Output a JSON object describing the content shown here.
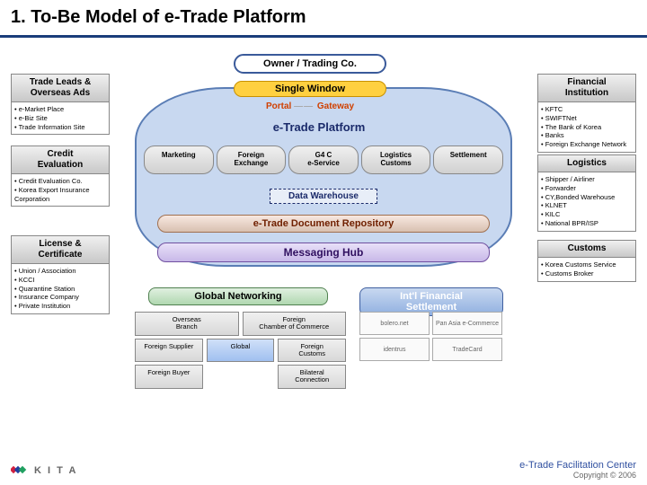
{
  "title": "1. To-Be Model of e-Trade Platform",
  "center": {
    "owner": "Owner / Trading Co.",
    "single_window": "Single Window",
    "portal": "Portal",
    "gateway": "Gateway",
    "platform_label": "e-Trade Platform",
    "modules": [
      "Marketing",
      "Foreign\nExchange",
      "G4 C\ne-Service",
      "Logistics\nCustoms",
      "Settlement"
    ],
    "data_warehouse": "Data Warehouse",
    "doc_repo": "e-Trade Document Repository",
    "msg_hub": "Messaging Hub"
  },
  "left": [
    {
      "hd": "Trade Leads &\nOverseas Ads",
      "items": [
        "e-Market Place",
        "e-Biz Site",
        "Trade Information Site"
      ]
    },
    {
      "hd": "Credit\nEvaluation",
      "items": [
        "Credit Evaluation Co.",
        "Korea Export Insurance Corporation"
      ]
    },
    {
      "hd": "License &\nCertificate",
      "items": [
        "Union / Association",
        "KCCI",
        "Quarantine Station",
        "Insurance Company",
        "Private Institution"
      ]
    }
  ],
  "right": [
    {
      "hd": "Financial\nInstitution",
      "items": [
        "KFTC",
        "SWIFTNet",
        "The Bank of Korea",
        "Banks",
        "Foreign Exchange Network"
      ]
    },
    {
      "hd": "Logistics",
      "items": [
        "Shipper / Airliner",
        "Forwarder",
        "CY,Bonded Warehouse",
        "KLNET",
        "KILC",
        "National BPR/ISP"
      ]
    },
    {
      "hd": "Customs",
      "items": [
        "Korea Customs Service",
        "Customs Broker"
      ]
    }
  ],
  "bottom": {
    "global_net": "Global Networking",
    "intl_settle": "Int'l Financial\nSettlement",
    "grid": [
      [
        "Overseas\nBranch",
        "Foreign\nChamber of Commerce"
      ],
      [
        "Foreign Supplier",
        "Global",
        "Foreign\nCustoms"
      ],
      [
        "Foreign Buyer",
        "",
        "Bilateral\nConnection"
      ]
    ],
    "logos": [
      "bolero.net",
      "Pan Asia e-Commerce",
      "identrus",
      "TradeCard"
    ]
  },
  "footer": {
    "kita": "K I T A",
    "center_name": "e-Trade Facilitation Center",
    "copyright": "Copyright © 2006"
  },
  "colors": {
    "title_rule": "#1a3d7a",
    "cloud_fill": "#c8d8f0",
    "cloud_border": "#5a7db5",
    "single_window": "#ffd040"
  }
}
